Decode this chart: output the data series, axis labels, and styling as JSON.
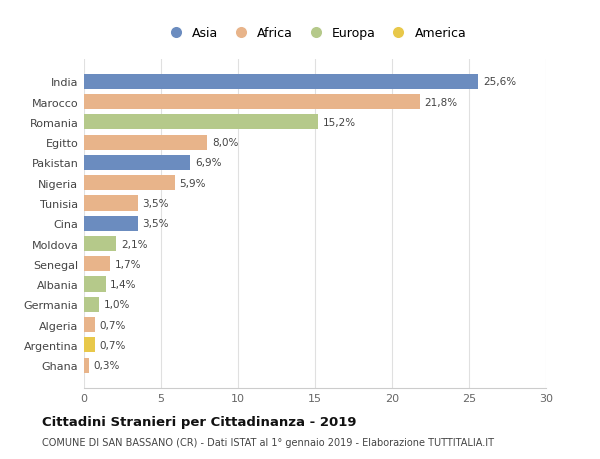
{
  "countries": [
    "India",
    "Marocco",
    "Romania",
    "Egitto",
    "Pakistan",
    "Nigeria",
    "Tunisia",
    "Cina",
    "Moldova",
    "Senegal",
    "Albania",
    "Germania",
    "Algeria",
    "Argentina",
    "Ghana"
  ],
  "values": [
    25.6,
    21.8,
    15.2,
    8.0,
    6.9,
    5.9,
    3.5,
    3.5,
    2.1,
    1.7,
    1.4,
    1.0,
    0.7,
    0.7,
    0.3
  ],
  "labels": [
    "25,6%",
    "21,8%",
    "15,2%",
    "8,0%",
    "6,9%",
    "5,9%",
    "3,5%",
    "3,5%",
    "2,1%",
    "1,7%",
    "1,4%",
    "1,0%",
    "0,7%",
    "0,7%",
    "0,3%"
  ],
  "continents": [
    "Asia",
    "Africa",
    "Europa",
    "Africa",
    "Asia",
    "Africa",
    "Africa",
    "Asia",
    "Europa",
    "Africa",
    "Europa",
    "Europa",
    "Africa",
    "America",
    "Africa"
  ],
  "colors": {
    "Asia": "#6b8cbf",
    "Africa": "#e8b48a",
    "Europa": "#b5c98a",
    "America": "#e8c84a"
  },
  "legend_order": [
    "Asia",
    "Africa",
    "Europa",
    "America"
  ],
  "title": "Cittadini Stranieri per Cittadinanza - 2019",
  "subtitle": "COMUNE DI SAN BASSANO (CR) - Dati ISTAT al 1° gennaio 2019 - Elaborazione TUTTITALIA.IT",
  "xlim": [
    0,
    30
  ],
  "xticks": [
    0,
    5,
    10,
    15,
    20,
    25,
    30
  ],
  "bg_color": "#ffffff",
  "grid_color": "#e0e0e0"
}
